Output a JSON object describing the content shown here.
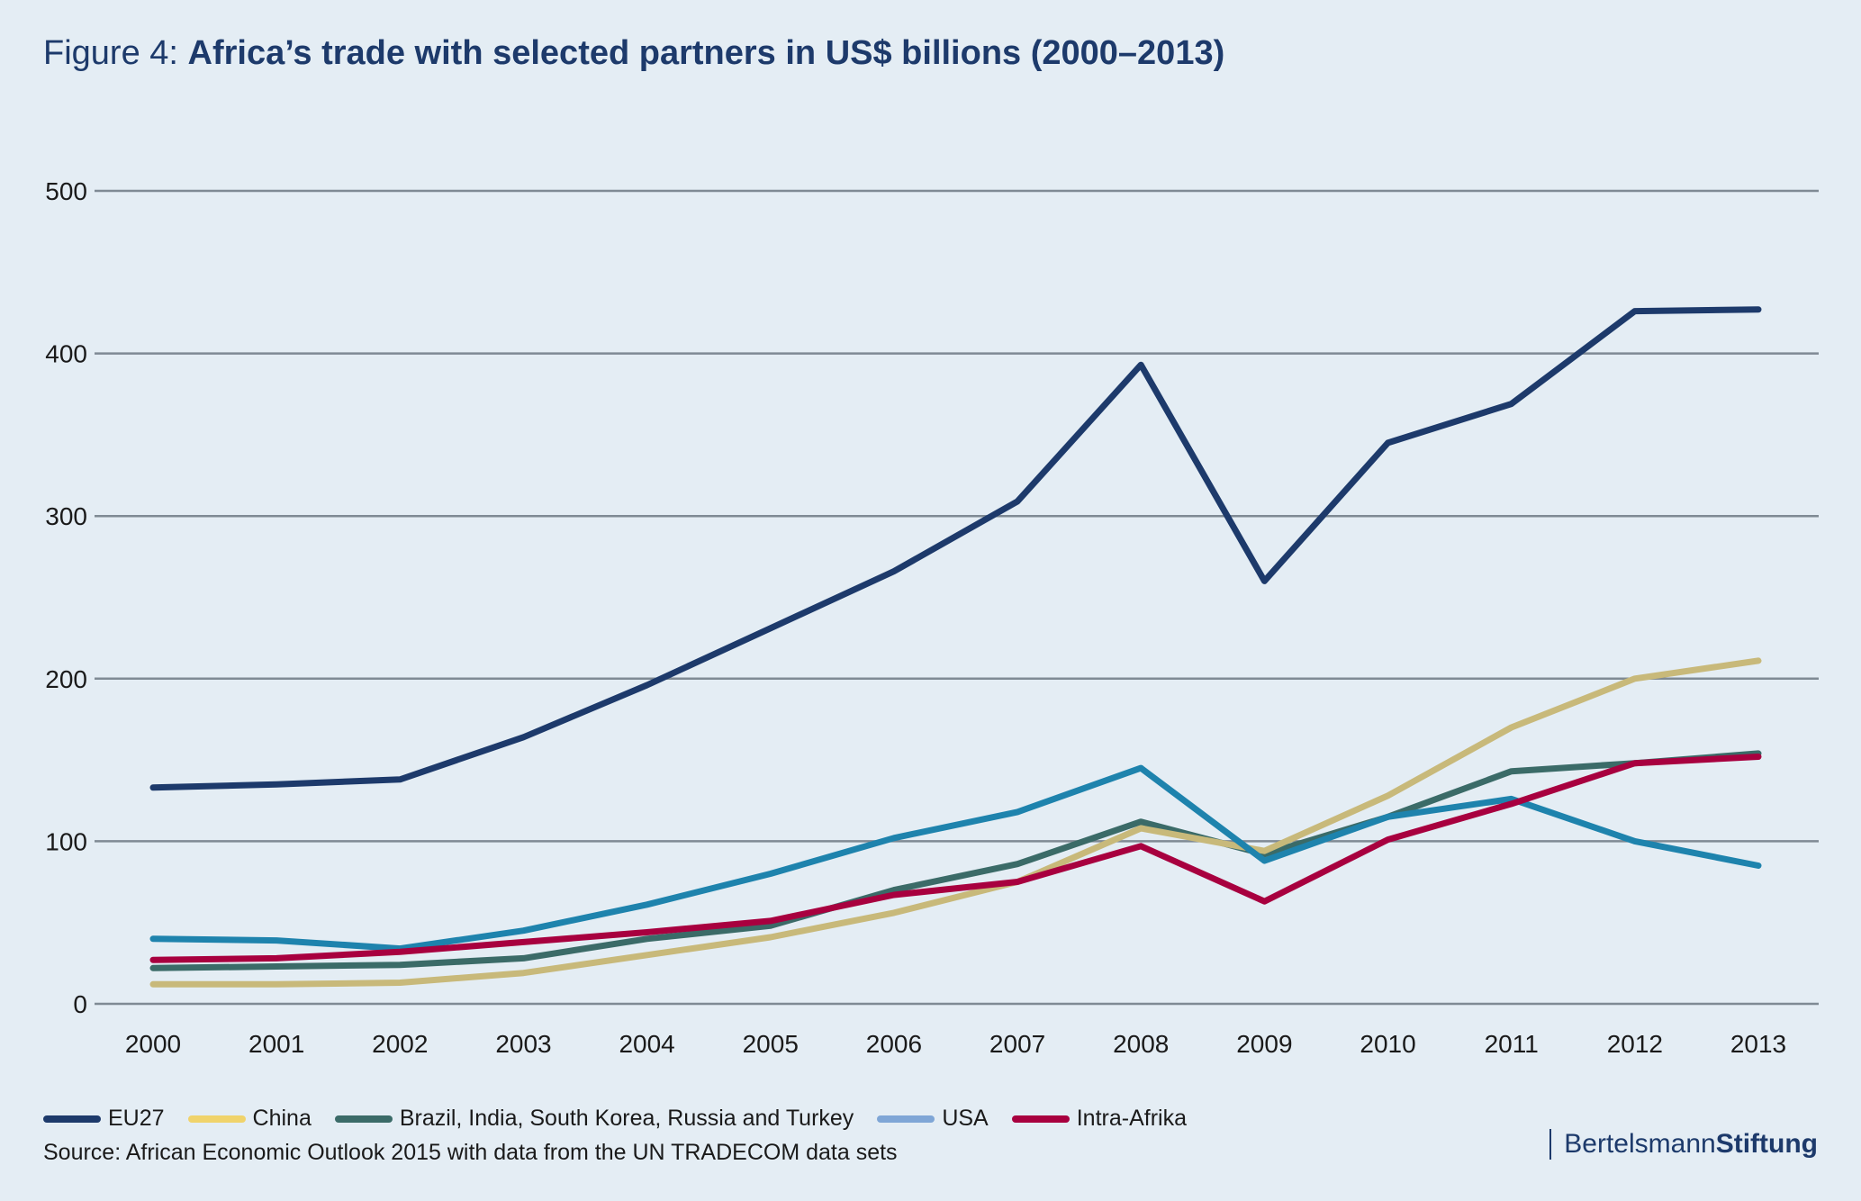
{
  "title": {
    "prefix": "Figure 4: ",
    "main": "Africa’s trade with selected partners in US$ billions (2000–2013)"
  },
  "source": "Source: African Economic Outlook 2015 with data from the UN TRADECOM data sets",
  "brand": {
    "part1": "Bertelsmann",
    "part2": "Stiftung"
  },
  "chart_data": {
    "type": "line",
    "x": [
      "2000",
      "2001",
      "2002",
      "2003",
      "2004",
      "2005",
      "2006",
      "2007",
      "2008",
      "2009",
      "2010",
      "2011",
      "2012",
      "2013"
    ],
    "ylim": [
      0,
      500
    ],
    "yticks": [
      0,
      100,
      200,
      300,
      400,
      500
    ],
    "grid": true,
    "legend_position": "bottom",
    "series": [
      {
        "name": "Brazil, India, South Korea, Russia and Turkey",
        "color": "#3b6b68",
        "legend_color": "#3b6b68",
        "values": [
          22,
          23,
          24,
          28,
          40,
          48,
          70,
          86,
          112,
          92,
          115,
          143,
          148,
          154
        ]
      },
      {
        "name": "China",
        "color": "#c8b97a",
        "legend_color": "#f0d36b",
        "values": [
          12,
          12,
          13,
          19,
          30,
          41,
          56,
          75,
          108,
          94,
          128,
          170,
          200,
          211
        ]
      },
      {
        "name": "USA",
        "color": "#1e83ad",
        "legend_color": "#7fa6d6",
        "values": [
          40,
          39,
          34,
          45,
          61,
          80,
          102,
          118,
          145,
          88,
          115,
          126,
          100,
          85
        ]
      },
      {
        "name": "Intra-Afrika",
        "color": "#a8003f",
        "legend_color": "#a8003f",
        "values": [
          27,
          28,
          32,
          38,
          44,
          51,
          67,
          75,
          97,
          63,
          101,
          123,
          148,
          152
        ]
      },
      {
        "name": "EU27",
        "color": "#1d3a6b",
        "legend_color": "#1d3a6b",
        "values": [
          133,
          135,
          138,
          164,
          196,
          231,
          266,
          309,
          393,
          260,
          345,
          369,
          426,
          427
        ]
      }
    ],
    "legend_order": [
      "EU27",
      "China",
      "Brazil, India, South Korea, Russia and Turkey",
      "USA",
      "Intra-Afrika"
    ]
  }
}
